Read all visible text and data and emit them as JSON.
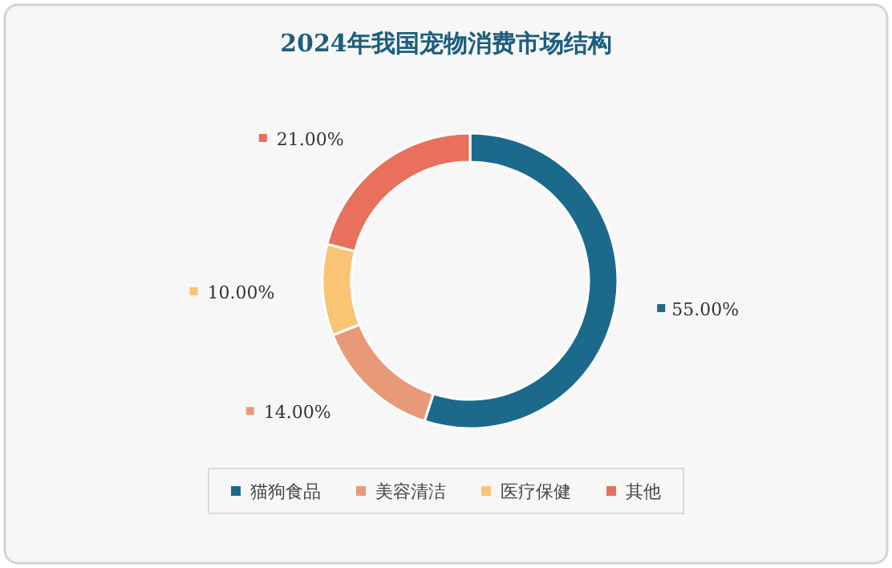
{
  "chart_data": {
    "type": "donut",
    "title": "2024年我国宠物消费市场结构",
    "categories": [
      "猫狗食品",
      "美容清洁",
      "医疗保健",
      "其他"
    ],
    "values": [
      55,
      14,
      10,
      21
    ],
    "colors": [
      "#1b6a8c",
      "#e89a78",
      "#f9c474",
      "#e8705c"
    ],
    "value_labels": [
      "55.00%",
      "14.00%",
      "10.00%",
      "21.00%"
    ],
    "legend": "bottom"
  }
}
